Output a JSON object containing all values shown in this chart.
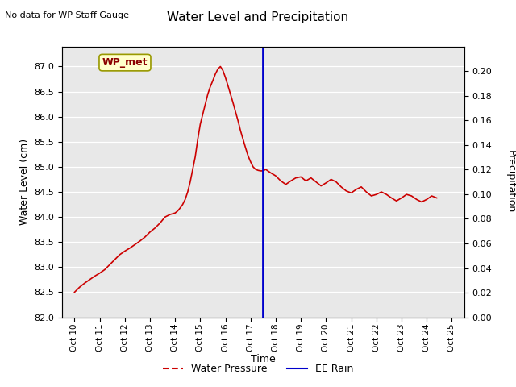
{
  "title": "Water Level and Precipitation",
  "top_left_text": "No data for WP Staff Gauge",
  "xlabel": "Time",
  "ylabel_left": "Water Level (cm)",
  "ylabel_right": "Precipitation",
  "annotation_label": "WP_met",
  "xlim": [
    9.5,
    25.5
  ],
  "ylim_left": [
    82.0,
    87.4
  ],
  "ylim_right": [
    0.0,
    0.22
  ],
  "xticks": [
    10,
    11,
    12,
    13,
    14,
    15,
    16,
    17,
    18,
    19,
    20,
    21,
    22,
    23,
    24,
    25
  ],
  "xtick_labels": [
    "Oct 10",
    "Oct 11",
    "Oct 12",
    "Oct 13",
    "Oct 14",
    "Oct 15",
    "Oct 16",
    "Oct 17",
    "Oct 18",
    "Oct 19",
    "Oct 20",
    "Oct 21",
    "Oct 22",
    "Oct 23",
    "Oct 24",
    "Oct 25"
  ],
  "yticks_left": [
    82.0,
    82.5,
    83.0,
    83.5,
    84.0,
    84.5,
    85.0,
    85.5,
    86.0,
    86.5,
    87.0
  ],
  "yticks_right": [
    0.0,
    0.02,
    0.04,
    0.06,
    0.08,
    0.1,
    0.12,
    0.14,
    0.16,
    0.18,
    0.2
  ],
  "vline_x": 17.5,
  "vline_color": "#0000cc",
  "water_pressure_color": "#cc0000",
  "water_pressure_x": [
    10.0,
    10.2,
    10.4,
    10.6,
    10.8,
    11.0,
    11.2,
    11.4,
    11.6,
    11.8,
    12.0,
    12.2,
    12.4,
    12.6,
    12.8,
    13.0,
    13.2,
    13.4,
    13.6,
    13.8,
    14.0,
    14.1,
    14.2,
    14.3,
    14.4,
    14.5,
    14.6,
    14.7,
    14.8,
    14.9,
    15.0,
    15.1,
    15.2,
    15.3,
    15.4,
    15.5,
    15.6,
    15.7,
    15.8,
    15.9,
    16.0,
    16.1,
    16.2,
    16.3,
    16.4,
    16.5,
    16.6,
    16.7,
    16.8,
    16.9,
    17.0,
    17.1,
    17.2,
    17.3,
    17.4,
    17.5,
    17.6,
    17.8,
    18.0,
    18.2,
    18.4,
    18.6,
    18.8,
    19.0,
    19.2,
    19.4,
    19.6,
    19.8,
    20.0,
    20.2,
    20.4,
    20.6,
    20.8,
    21.0,
    21.2,
    21.4,
    21.6,
    21.8,
    22.0,
    22.2,
    22.4,
    22.6,
    22.8,
    23.0,
    23.2,
    23.4,
    23.6,
    23.8,
    24.0,
    24.2,
    24.4
  ],
  "water_pressure_y": [
    82.5,
    82.6,
    82.68,
    82.75,
    82.82,
    82.88,
    82.95,
    83.05,
    83.15,
    83.25,
    83.32,
    83.38,
    83.45,
    83.52,
    83.6,
    83.7,
    83.78,
    83.88,
    84.0,
    84.05,
    84.08,
    84.12,
    84.18,
    84.25,
    84.35,
    84.5,
    84.7,
    84.95,
    85.2,
    85.55,
    85.85,
    86.05,
    86.25,
    86.45,
    86.6,
    86.72,
    86.85,
    86.95,
    87.0,
    86.92,
    86.78,
    86.62,
    86.45,
    86.28,
    86.1,
    85.92,
    85.72,
    85.55,
    85.38,
    85.22,
    85.1,
    85.0,
    84.95,
    84.93,
    84.92,
    84.92,
    84.95,
    84.88,
    84.82,
    84.72,
    84.65,
    84.72,
    84.78,
    84.8,
    84.72,
    84.78,
    84.7,
    84.62,
    84.68,
    84.75,
    84.7,
    84.6,
    84.52,
    84.48,
    84.55,
    84.6,
    84.5,
    84.42,
    84.45,
    84.5,
    84.45,
    84.38,
    84.32,
    84.38,
    84.45,
    84.42,
    84.35,
    84.3,
    84.35,
    84.42,
    84.38
  ],
  "background_color": "#e8e8e8",
  "legend_water_pressure": "Water Pressure",
  "legend_ee_rain": "EE Rain",
  "fig_background": "#ffffff"
}
